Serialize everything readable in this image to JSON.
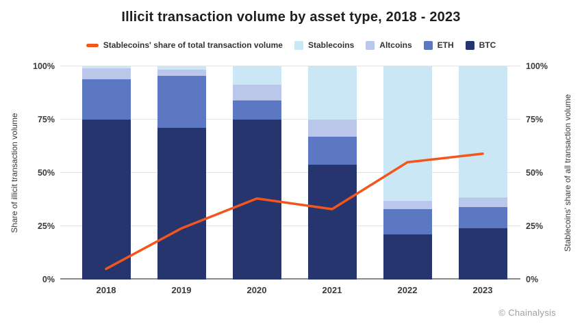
{
  "title": "Illicit transaction volume by asset type, 2018 - 2023",
  "legend": {
    "items": [
      {
        "swatch": "line",
        "label": "Stablecoins' share of total transaction volume",
        "color": "#f4551b"
      },
      {
        "swatch": "square",
        "label": "Stablecoins",
        "color": "#cbe7f5"
      },
      {
        "swatch": "square",
        "label": "Altcoins",
        "color": "#bac7eb"
      },
      {
        "swatch": "square",
        "label": "ETH",
        "color": "#5d78c3"
      },
      {
        "swatch": "square",
        "label": "BTC",
        "color": "#27356e"
      }
    ]
  },
  "chart_data": {
    "type": "bar",
    "stacked": true,
    "title": "Illicit transaction volume by asset type, 2018 - 2023",
    "categories": [
      "2018",
      "2019",
      "2020",
      "2021",
      "2022",
      "2023"
    ],
    "series": [
      {
        "name": "BTC",
        "color": "#27356e",
        "values": [
          75,
          71,
          75,
          54,
          21,
          24
        ]
      },
      {
        "name": "ETH",
        "color": "#5d78c3",
        "values": [
          19,
          24.5,
          9,
          13,
          12,
          10
        ]
      },
      {
        "name": "Altcoins",
        "color": "#bac7eb",
        "values": [
          5,
          3,
          7.5,
          8,
          4,
          4.5
        ]
      },
      {
        "name": "Stablecoins",
        "color": "#cbe7f5",
        "values": [
          1,
          1.5,
          8.5,
          25,
          63,
          61.5
        ]
      }
    ],
    "line_series": {
      "name": "Stablecoins' share of total transaction volume",
      "color": "#f4551b",
      "axis": "right",
      "values": [
        5,
        24,
        38,
        33,
        55,
        59
      ]
    },
    "ylabel_left": "Share of illicit transaction volume",
    "ylabel_right": "Stablecoins' share of all transaction volume",
    "yticks": [
      "0%",
      "25%",
      "50%",
      "75%",
      "100%"
    ],
    "ytick_values": [
      0,
      25,
      50,
      75,
      100
    ],
    "ylim": [
      0,
      100
    ],
    "grid": "horizontal",
    "legend_position": "top"
  },
  "footer": {
    "credit": "© Chainalysis"
  },
  "colors": {
    "background": "#ffffff",
    "gridline": "#e2e2e2",
    "axis_line": "#8a8a8a",
    "tick_text": "#3a3a3a",
    "title_text": "#1e1e1e",
    "credit_text": "#9e9e9e"
  }
}
